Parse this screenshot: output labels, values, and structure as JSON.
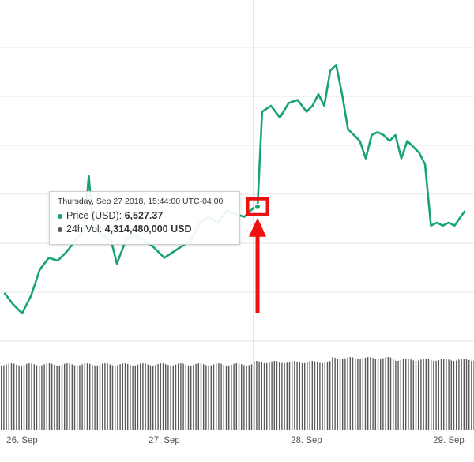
{
  "chart_data": {
    "type": "line",
    "x_ticks": [
      "26. Sep",
      "27. Sep",
      "28. Sep",
      "29. Sep"
    ],
    "grid": true,
    "price_series": {
      "name": "Price (USD)",
      "color": "#18a374",
      "points": [
        [
          "2018-09-25 21:00",
          6380
        ],
        [
          "2018-09-25 22:30",
          6360
        ],
        [
          "2018-09-26 00:00",
          6345
        ],
        [
          "2018-09-26 01:30",
          6375
        ],
        [
          "2018-09-26 03:00",
          6420
        ],
        [
          "2018-09-26 04:30",
          6440
        ],
        [
          "2018-09-26 06:00",
          6435
        ],
        [
          "2018-09-26 07:30",
          6450
        ],
        [
          "2018-09-26 09:00",
          6470
        ],
        [
          "2018-09-26 10:30",
          6490
        ],
        [
          "2018-09-26 11:15",
          6580
        ],
        [
          "2018-09-26 12:00",
          6490
        ],
        [
          "2018-09-26 13:30",
          6480
        ],
        [
          "2018-09-26 15:00",
          6470
        ],
        [
          "2018-09-26 16:00",
          6430
        ],
        [
          "2018-09-26 17:30",
          6470
        ],
        [
          "2018-09-26 19:00",
          6480
        ],
        [
          "2018-09-26 20:30",
          6470
        ],
        [
          "2018-09-26 22:00",
          6460
        ],
        [
          "2018-09-27 00:00",
          6440
        ],
        [
          "2018-09-27 01:30",
          6450
        ],
        [
          "2018-09-27 03:00",
          6460
        ],
        [
          "2018-09-27 04:30",
          6470
        ],
        [
          "2018-09-27 06:00",
          6500
        ],
        [
          "2018-09-27 07:30",
          6510
        ],
        [
          "2018-09-27 09:00",
          6500
        ],
        [
          "2018-09-27 10:30",
          6520
        ],
        [
          "2018-09-27 12:00",
          6515
        ],
        [
          "2018-09-27 13:30",
          6510
        ],
        [
          "2018-09-27 15:00",
          6525
        ],
        [
          "2018-09-27 15:44",
          6527.37
        ],
        [
          "2018-09-27 16:30",
          6690
        ],
        [
          "2018-09-27 18:00",
          6700
        ],
        [
          "2018-09-27 19:30",
          6680
        ],
        [
          "2018-09-27 21:00",
          6705
        ],
        [
          "2018-09-27 22:30",
          6710
        ],
        [
          "2018-09-28 00:00",
          6690
        ],
        [
          "2018-09-28 01:00",
          6700
        ],
        [
          "2018-09-28 02:00",
          6720
        ],
        [
          "2018-09-28 03:00",
          6700
        ],
        [
          "2018-09-28 04:00",
          6760
        ],
        [
          "2018-09-28 05:00",
          6770
        ],
        [
          "2018-09-28 06:00",
          6720
        ],
        [
          "2018-09-28 07:00",
          6660
        ],
        [
          "2018-09-28 08:00",
          6650
        ],
        [
          "2018-09-28 09:00",
          6640
        ],
        [
          "2018-09-28 10:00",
          6610
        ],
        [
          "2018-09-28 11:00",
          6650
        ],
        [
          "2018-09-28 12:00",
          6655
        ],
        [
          "2018-09-28 13:00",
          6650
        ],
        [
          "2018-09-28 14:00",
          6640
        ],
        [
          "2018-09-28 15:00",
          6650
        ],
        [
          "2018-09-28 16:00",
          6610
        ],
        [
          "2018-09-28 17:00",
          6640
        ],
        [
          "2018-09-28 18:00",
          6630
        ],
        [
          "2018-09-28 19:00",
          6620
        ],
        [
          "2018-09-28 20:00",
          6600
        ],
        [
          "2018-09-28 21:00",
          6495
        ],
        [
          "2018-09-28 22:00",
          6500
        ],
        [
          "2018-09-28 23:00",
          6495
        ],
        [
          "2018-09-29 00:00",
          6500
        ],
        [
          "2018-09-29 01:00",
          6495
        ],
        [
          "2018-09-29 02:00",
          6510
        ],
        [
          "2018-09-29 02:45",
          6520
        ]
      ]
    },
    "volume_series": {
      "name": "24h Vol",
      "color": "#5a5a5a"
    },
    "tooltip": {
      "date": "Thursday, Sep 27 2018, 15:44:00 UTC-04:00",
      "price_label": "Price (USD)",
      "price_value": "6,527.37",
      "volume_label": "24h Vol",
      "volume_value": "4,314,480,000 USD",
      "hover_x": "2018-09-27 15:44"
    },
    "annotation": {
      "color": "#ee1111",
      "shape": "red box with upward arrow at hovered point"
    }
  }
}
